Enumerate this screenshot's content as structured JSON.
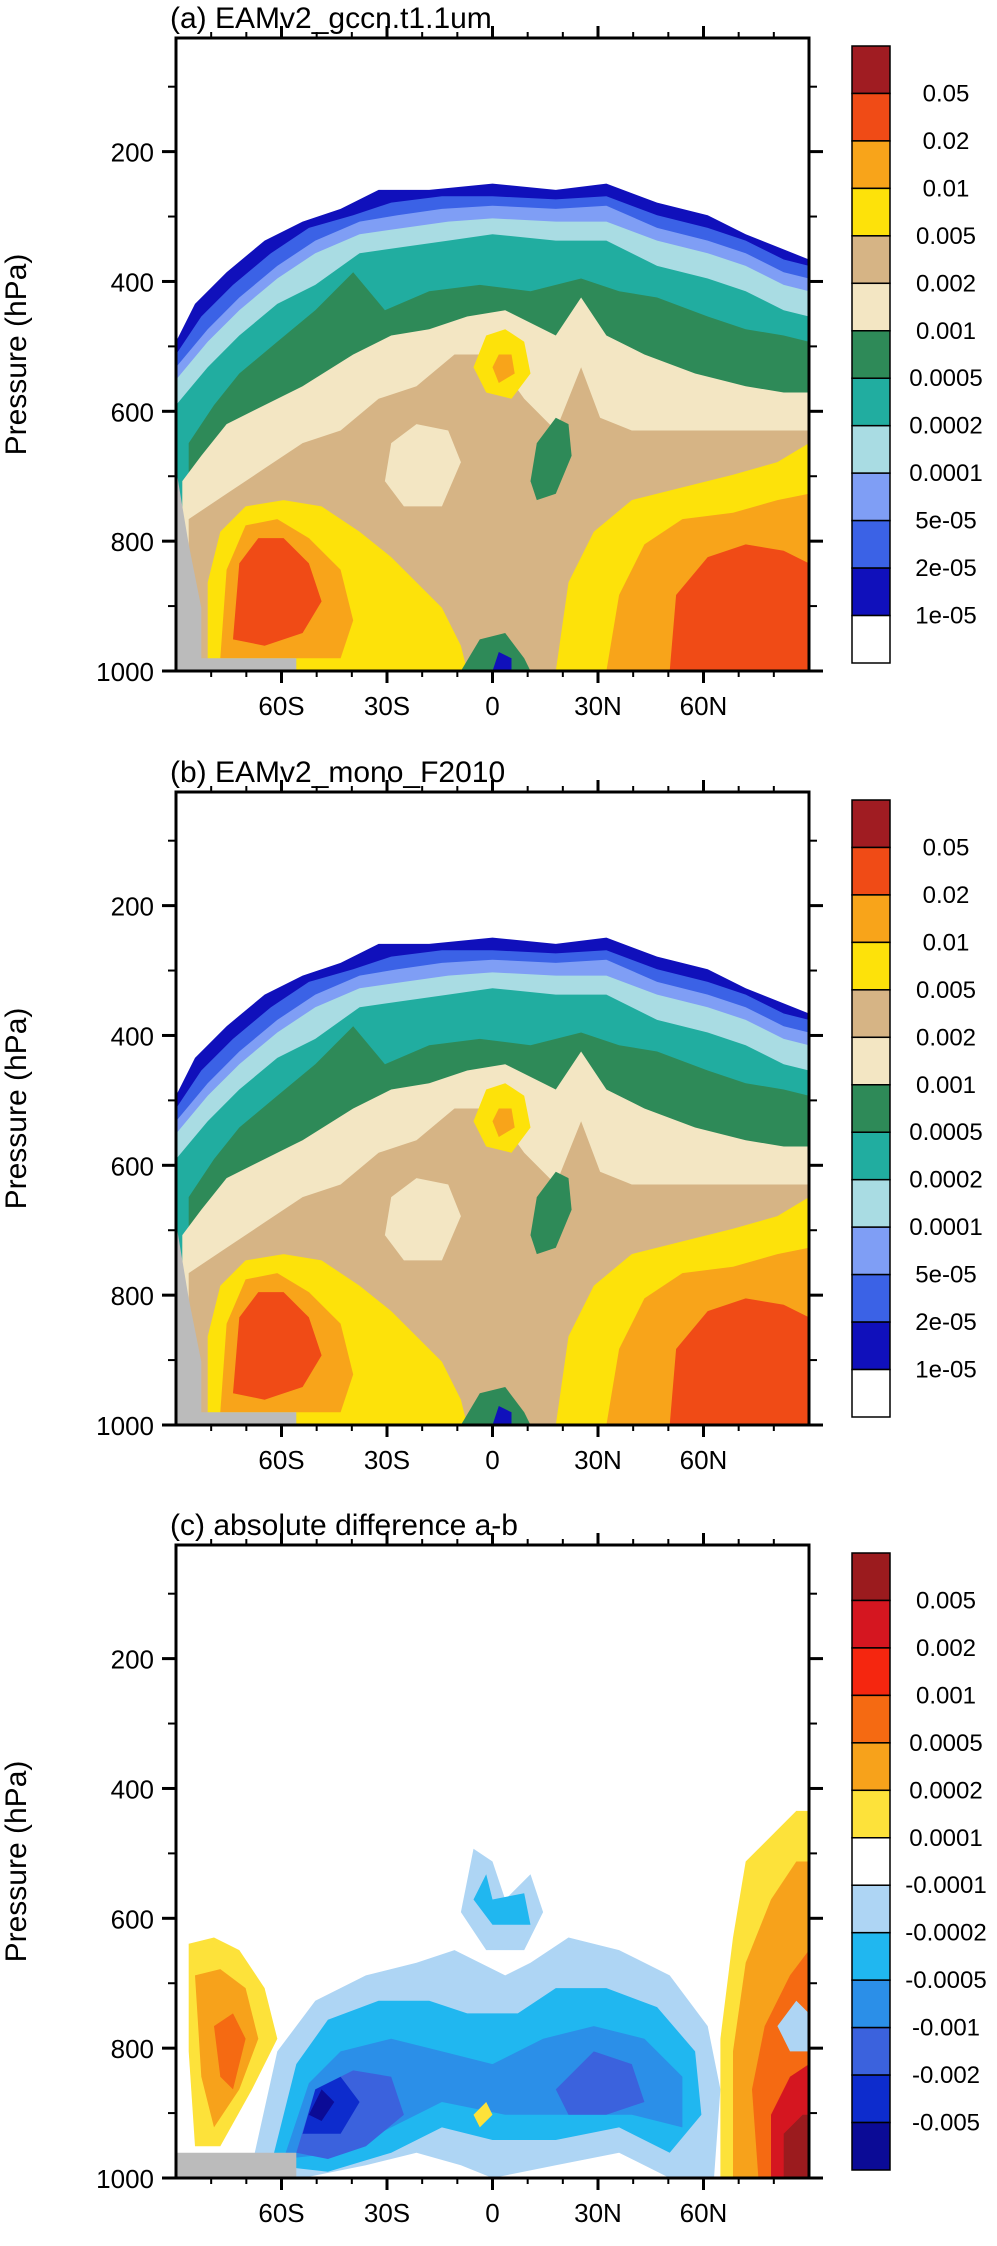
{
  "chart_data": [
    {
      "type": "heatmap",
      "title": "(a) EAMv2_gccn.t1.1um",
      "ylabel": "Pressure (hPa)",
      "y_ticks": [
        "200",
        "400",
        "600",
        "800",
        "1000"
      ],
      "y_tick_values": [
        200,
        400,
        600,
        800,
        1000
      ],
      "x_ticks": [
        "60S",
        "30S",
        "0",
        "30N",
        "60N"
      ],
      "x_tick_values": [
        -60,
        -30,
        0,
        30,
        60
      ],
      "xlim": [
        -90,
        90
      ],
      "ylim": [
        1000,
        25
      ],
      "colorbar": {
        "labels": [
          "0.05",
          "0.02",
          "0.01",
          "0.005",
          "0.002",
          "0.001",
          "0.0005",
          "0.0002",
          "0.0001",
          "5e-05",
          "2e-05",
          "1e-05"
        ],
        "colors": [
          "#a01c22",
          "#f04b16",
          "#f8a41a",
          "#fde20a",
          "#d6b485",
          "#f3e6c3",
          "#2e8a58",
          "#21ada0",
          "#a9dce3",
          "#7f9ef5",
          "#3b62e6",
          "#1010bb",
          "#ffffff"
        ]
      }
    },
    {
      "type": "heatmap",
      "title": "(b) EAMv2_mono_F2010",
      "ylabel": "Pressure (hPa)",
      "y_ticks": [
        "200",
        "400",
        "600",
        "800",
        "1000"
      ],
      "y_tick_values": [
        200,
        400,
        600,
        800,
        1000
      ],
      "x_ticks": [
        "60S",
        "30S",
        "0",
        "30N",
        "60N"
      ],
      "x_tick_values": [
        -60,
        -30,
        0,
        30,
        60
      ],
      "xlim": [
        -90,
        90
      ],
      "ylim": [
        1000,
        25
      ],
      "colorbar": {
        "labels": [
          "0.05",
          "0.02",
          "0.01",
          "0.005",
          "0.002",
          "0.001",
          "0.0005",
          "0.0002",
          "0.0001",
          "5e-05",
          "2e-05",
          "1e-05"
        ],
        "colors": [
          "#a01c22",
          "#f04b16",
          "#f8a41a",
          "#fde20a",
          "#d6b485",
          "#f3e6c3",
          "#2e8a58",
          "#21ada0",
          "#a9dce3",
          "#7f9ef5",
          "#3b62e6",
          "#1010bb",
          "#ffffff"
        ]
      }
    },
    {
      "type": "heatmap",
      "title": "(c) absolute difference a-b",
      "ylabel": "Pressure (hPa)",
      "y_ticks": [
        "200",
        "400",
        "600",
        "800",
        "1000"
      ],
      "y_tick_values": [
        200,
        400,
        600,
        800,
        1000
      ],
      "x_ticks": [
        "60S",
        "30S",
        "0",
        "30N",
        "60N"
      ],
      "x_tick_values": [
        -60,
        -30,
        0,
        30,
        60
      ],
      "xlim": [
        -90,
        90
      ],
      "ylim": [
        1000,
        25
      ],
      "colorbar": {
        "labels": [
          "0.005",
          "0.002",
          "0.001",
          "0.0005",
          "0.0002",
          "0.0001",
          "-0.0001",
          "-0.0002",
          "-0.0005",
          "-0.001",
          "-0.002",
          "-0.005"
        ],
        "colors": [
          "#9b1b1e",
          "#d51620",
          "#f5260f",
          "#f56a12",
          "#f7a21b",
          "#fde23a",
          "#ffffff",
          "#aed5f4",
          "#20b7f0",
          "#2b8fe8",
          "#3b62dd",
          "#0d2ccd",
          "#0b0b96"
        ]
      }
    }
  ]
}
